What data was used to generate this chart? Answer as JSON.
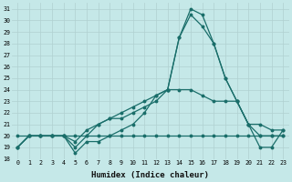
{
  "xlabel": "Humidex (Indice chaleur)",
  "ylabel": "",
  "bg_color": "#c5e8e8",
  "line_color": "#1a6e6a",
  "grid_color": "#b0d0d0",
  "ylim": [
    18,
    31.5
  ],
  "xlim": [
    -0.5,
    23.5
  ],
  "yticks": [
    18,
    19,
    20,
    21,
    22,
    23,
    24,
    25,
    26,
    27,
    28,
    29,
    30,
    31
  ],
  "xticks": [
    0,
    1,
    2,
    3,
    4,
    5,
    6,
    7,
    8,
    9,
    10,
    11,
    12,
    13,
    14,
    15,
    16,
    17,
    18,
    19,
    20,
    21,
    22,
    23
  ],
  "series": [
    [
      19,
      20,
      20,
      20,
      20,
      18.5,
      19.5,
      19.5,
      20,
      20.5,
      21,
      22,
      23.5,
      24,
      28.5,
      31,
      30.5,
      28,
      25,
      23,
      21,
      19,
      19,
      20.5
    ],
    [
      20,
      20,
      20,
      20,
      20,
      20,
      20,
      20,
      20,
      20,
      20,
      20,
      20,
      20,
      20,
      20,
      20,
      20,
      20,
      20,
      20,
      20,
      20,
      20
    ],
    [
      19,
      20,
      20,
      20,
      20,
      19.5,
      20.5,
      21,
      21.5,
      22,
      22.5,
      23,
      23.5,
      24,
      24,
      24,
      23.5,
      23,
      23,
      23,
      21,
      21,
      20.5,
      20.5
    ],
    [
      19,
      20,
      20,
      20,
      20,
      19,
      20,
      21,
      21.5,
      21.5,
      22,
      22.5,
      23,
      24,
      28.5,
      30.5,
      29.5,
      28,
      25,
      23,
      21,
      20,
      20,
      20
    ]
  ]
}
